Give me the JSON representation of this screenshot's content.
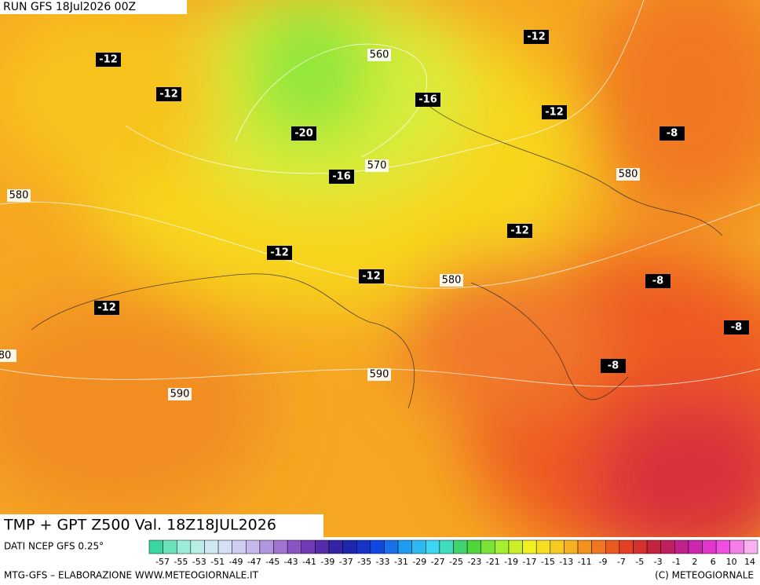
{
  "header": {
    "run": "RUN GFS 18Jul2026 00Z"
  },
  "map": {
    "temperature_labels": [
      "-12",
      "-12",
      "-20",
      "-16",
      "-16",
      "-12",
      "-12",
      "-8",
      "-12",
      "-12",
      "-12",
      "-12",
      "-8",
      "-8",
      "-8"
    ],
    "height_labels": [
      "560",
      "570",
      "580",
      "580",
      "580",
      "590",
      "590",
      "80"
    ]
  },
  "title": "TMP + GPT Z500 Val. 18Z18JUL2026",
  "legend": {
    "source": "DATI NCEP GFS 0.25°",
    "scale": [
      "-57",
      "-55",
      "-53",
      "-51",
      "-49",
      "-47",
      "-45",
      "-43",
      "-41",
      "-39",
      "-37",
      "-35",
      "-33",
      "-31",
      "-29",
      "-27",
      "-25",
      "-23",
      "-21",
      "-19",
      "-17",
      "-15",
      "-13",
      "-11",
      "-9",
      "-7",
      "-5",
      "-3",
      "-1",
      "2",
      "6",
      "10",
      "14"
    ]
  },
  "footer": {
    "left": "MTG-GFS – ELABORAZIONE WWW.METEOGIORNALE.IT",
    "right": "(C) METEOGIORNALE"
  }
}
